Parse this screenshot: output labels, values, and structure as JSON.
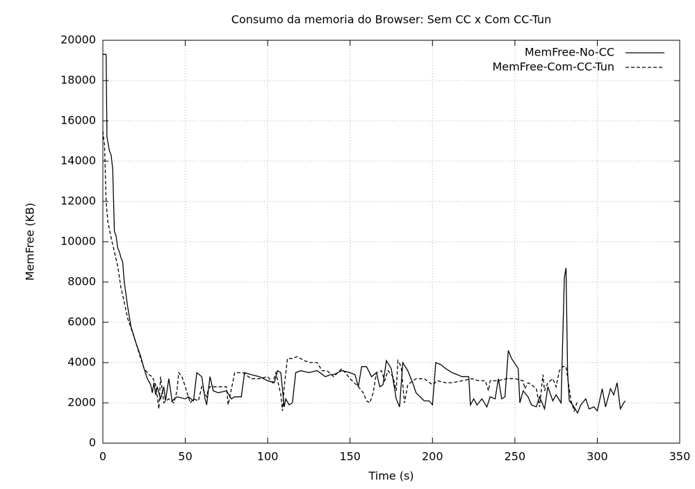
{
  "chart_data": {
    "type": "line",
    "title": "Consumo da memoria do Browser: Sem CC x Com CC-Tun",
    "x_label": "Time (s)",
    "y_label": "MemFree (KB)",
    "xlim": [
      0,
      350
    ],
    "xticks": [
      0,
      50,
      100,
      150,
      200,
      250,
      300,
      350
    ],
    "ylim": [
      0,
      20000
    ],
    "yticks": [
      0,
      2000,
      4000,
      6000,
      8000,
      10000,
      12000,
      14000,
      16000,
      18000,
      20000
    ],
    "grid": true,
    "legend": "top-right",
    "series": [
      {
        "name": "MemFree-No-CC",
        "color": "#000000",
        "dash": "solid",
        "x": [
          0,
          1,
          2,
          2.5,
          4,
          5,
          6,
          7,
          8,
          9,
          10,
          11,
          12,
          13,
          15,
          17,
          20,
          23,
          25,
          27,
          29,
          30,
          31,
          32,
          33,
          35,
          37,
          38,
          40,
          42,
          45,
          50,
          52,
          55,
          57,
          60,
          62,
          63,
          65,
          67,
          70,
          75,
          78,
          80,
          84,
          86,
          90,
          95,
          100,
          104,
          106,
          108,
          110,
          111,
          113,
          115,
          117,
          120,
          125,
          130,
          135,
          138,
          140,
          145,
          150,
          153,
          155,
          157,
          160,
          163,
          166,
          168,
          170,
          172,
          175,
          178,
          180,
          182,
          185,
          188,
          190,
          195,
          198,
          200,
          202,
          205,
          208,
          212,
          215,
          218,
          222,
          223,
          225,
          227,
          230,
          233,
          235,
          238,
          240,
          242,
          244,
          246,
          248,
          252,
          253,
          255,
          258,
          260,
          263,
          265,
          268,
          270,
          273,
          275,
          278,
          280,
          281,
          282,
          283,
          285,
          288,
          290,
          293,
          295,
          298,
          300,
          303,
          305,
          308,
          310,
          312,
          314,
          316,
          317
        ],
        "values": [
          19300,
          19300,
          19300,
          15200,
          14500,
          14300,
          13600,
          10500,
          10300,
          9700,
          9500,
          9200,
          9000,
          8000,
          6800,
          5800,
          5000,
          4300,
          3700,
          3200,
          2900,
          2500,
          3000,
          2400,
          2800,
          2200,
          2800,
          2100,
          3200,
          2100,
          2300,
          2200,
          2300,
          2100,
          3500,
          3300,
          2200,
          1900,
          3300,
          2600,
          2500,
          2600,
          2200,
          2300,
          2300,
          3500,
          3400,
          3300,
          3100,
          3000,
          3600,
          3500,
          1800,
          2200,
          1900,
          2000,
          3500,
          3600,
          3500,
          3600,
          3300,
          3400,
          3400,
          3600,
          3500,
          3400,
          2800,
          3800,
          3800,
          3300,
          3500,
          2800,
          2900,
          4100,
          3700,
          2200,
          1800,
          4000,
          3600,
          3000,
          2500,
          2100,
          2100,
          1900,
          4000,
          3900,
          3700,
          3500,
          3400,
          3300,
          3300,
          1900,
          2200,
          1900,
          2200,
          1800,
          2300,
          2200,
          3200,
          2200,
          2300,
          4600,
          4200,
          3700,
          2000,
          2600,
          2300,
          1900,
          1800,
          2300,
          1700,
          2800,
          2100,
          2400,
          2000,
          8200,
          8700,
          3500,
          2100,
          1900,
          1500,
          1900,
          2200,
          1700,
          1800,
          1600,
          2700,
          1800,
          2700,
          2400,
          3000,
          1700,
          2000,
          2100
        ]
      },
      {
        "name": "MemFree-Com-CC-Tun",
        "color": "#000000",
        "dash": "dashed",
        "x": [
          0,
          1,
          2,
          3,
          5,
          7,
          9,
          11,
          13,
          15,
          18,
          20,
          23,
          25,
          28,
          30,
          32,
          33,
          34,
          35,
          37,
          40,
          43,
          45,
          46,
          48,
          50,
          53,
          55,
          58,
          60,
          63,
          64,
          65,
          70,
          75,
          76,
          78,
          80,
          85,
          90,
          95,
          100,
          103,
          105,
          108,
          109,
          110,
          112,
          115,
          118,
          122,
          126,
          130,
          133,
          136,
          140,
          145,
          148,
          150,
          155,
          158,
          160,
          162,
          164,
          166,
          169,
          171,
          173,
          176,
          178,
          179,
          181,
          183,
          185,
          190,
          195,
          200,
          203,
          208,
          212,
          218,
          224,
          228,
          232,
          234,
          235,
          240,
          245,
          250,
          255,
          256,
          258,
          260,
          263,
          265,
          267,
          268,
          270,
          273,
          275,
          277,
          279,
          281,
          283,
          284,
          286,
          288
        ],
        "values": [
          15500,
          14800,
          12000,
          11000,
          10200,
          9500,
          8800,
          7700,
          7000,
          6200,
          5500,
          5000,
          4200,
          3700,
          3400,
          3300,
          2900,
          2300,
          1700,
          3300,
          2000,
          2200,
          2000,
          2600,
          3500,
          3300,
          2800,
          2000,
          2200,
          2100,
          2800,
          2300,
          2700,
          2800,
          2800,
          2800,
          1900,
          2700,
          3500,
          3500,
          3200,
          3200,
          3300,
          3000,
          3500,
          2400,
          1600,
          2800,
          4200,
          4200,
          4300,
          4100,
          4000,
          4000,
          3600,
          3600,
          3300,
          3700,
          3400,
          3200,
          2800,
          2500,
          2100,
          2000,
          2500,
          3500,
          3600,
          3100,
          3600,
          3300,
          2600,
          4100,
          3800,
          2000,
          2900,
          3200,
          3200,
          2900,
          3100,
          3000,
          3000,
          3100,
          3200,
          3100,
          3100,
          2600,
          3100,
          3100,
          3200,
          3200,
          3100,
          2700,
          3000,
          2900,
          2700,
          1800,
          3400,
          2600,
          3000,
          3200,
          2800,
          3600,
          3800,
          3800,
          2700,
          2100,
          1600,
          2100
        ]
      }
    ]
  }
}
